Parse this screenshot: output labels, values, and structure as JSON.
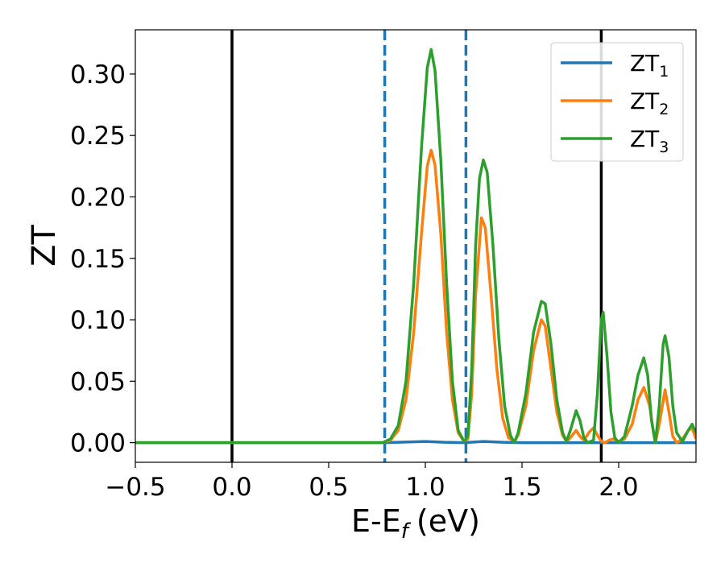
{
  "chart_data": {
    "type": "line",
    "title": "",
    "xlabel": "E-E",
    "xlabel_sub": "f",
    "xlabel_unit": "(eV)",
    "ylabel": "ZT",
    "xlim": [
      -0.5,
      2.4
    ],
    "ylim": [
      -0.016,
      0.336
    ],
    "xticks": [
      -0.5,
      0.0,
      0.5,
      1.0,
      1.5,
      2.0
    ],
    "xtick_labels": [
      "−0.5",
      "0.0",
      "0.5",
      "1.0",
      "1.5",
      "2.0"
    ],
    "yticks": [
      0.0,
      0.05,
      0.1,
      0.15,
      0.2,
      0.25,
      0.3
    ],
    "ytick_labels": [
      "0.00",
      "0.05",
      "0.10",
      "0.15",
      "0.20",
      "0.25",
      "0.30"
    ],
    "grid": false,
    "legend_position": "top-right",
    "vlines": [
      {
        "x": 0.0,
        "color": "#000000",
        "style": "solid"
      },
      {
        "x": 0.79,
        "color": "#1f77b4",
        "style": "dashed"
      },
      {
        "x": 1.21,
        "color": "#1f77b4",
        "style": "dashed"
      },
      {
        "x": 1.91,
        "color": "#000000",
        "style": "solid"
      }
    ],
    "series": [
      {
        "name": "ZT",
        "name_sub": "1",
        "color": "#1f77b4",
        "points": [
          [
            -0.5,
            0
          ],
          [
            0.78,
            0
          ],
          [
            0.9,
            0.0005
          ],
          [
            1.0,
            0.001
          ],
          [
            1.1,
            0.0003
          ],
          [
            1.2,
            0
          ],
          [
            1.3,
            0.001
          ],
          [
            1.4,
            0.0003
          ],
          [
            1.5,
            0
          ],
          [
            2.4,
            0
          ]
        ]
      },
      {
        "name": "ZT",
        "name_sub": "2",
        "color": "#ff7f0e",
        "points": [
          [
            -0.5,
            0
          ],
          [
            0.78,
            0
          ],
          [
            0.82,
            0.002
          ],
          [
            0.86,
            0.01
          ],
          [
            0.9,
            0.035
          ],
          [
            0.94,
            0.09
          ],
          [
            0.98,
            0.17
          ],
          [
            1.01,
            0.225
          ],
          [
            1.03,
            0.238
          ],
          [
            1.05,
            0.226
          ],
          [
            1.08,
            0.17
          ],
          [
            1.11,
            0.09
          ],
          [
            1.14,
            0.035
          ],
          [
            1.17,
            0.008
          ],
          [
            1.2,
            0.001
          ],
          [
            1.22,
            0.003
          ],
          [
            1.24,
            0.04
          ],
          [
            1.26,
            0.12
          ],
          [
            1.29,
            0.183
          ],
          [
            1.31,
            0.175
          ],
          [
            1.34,
            0.12
          ],
          [
            1.37,
            0.06
          ],
          [
            1.4,
            0.02
          ],
          [
            1.43,
            0.004
          ],
          [
            1.46,
            0.001
          ],
          [
            1.48,
            0.006
          ],
          [
            1.52,
            0.03
          ],
          [
            1.56,
            0.075
          ],
          [
            1.6,
            0.1
          ],
          [
            1.62,
            0.095
          ],
          [
            1.65,
            0.06
          ],
          [
            1.68,
            0.025
          ],
          [
            1.71,
            0.006
          ],
          [
            1.73,
            0.001
          ],
          [
            1.75,
            0.004
          ],
          [
            1.78,
            0.01
          ],
          [
            1.8,
            0.005
          ],
          [
            1.82,
            0.002
          ],
          [
            1.85,
            0.009
          ],
          [
            1.87,
            0.012
          ],
          [
            1.89,
            0.006
          ],
          [
            1.91,
            0.001
          ],
          [
            1.93,
            0.0
          ],
          [
            1.95,
            0.002
          ],
          [
            1.97,
            0.003
          ],
          [
            2.0,
            0.001
          ],
          [
            2.03,
            0.003
          ],
          [
            2.07,
            0.015
          ],
          [
            2.1,
            0.035
          ],
          [
            2.13,
            0.045
          ],
          [
            2.16,
            0.03
          ],
          [
            2.18,
            0.008
          ],
          [
            2.19,
            0.0
          ],
          [
            2.21,
            0.015
          ],
          [
            2.24,
            0.043
          ],
          [
            2.26,
            0.025
          ],
          [
            2.28,
            0.005
          ],
          [
            2.3,
            0.0
          ],
          [
            2.33,
            0.003
          ],
          [
            2.36,
            0.01
          ],
          [
            2.38,
            0.012
          ],
          [
            2.4,
            0.003
          ]
        ]
      },
      {
        "name": "ZT",
        "name_sub": "3",
        "color": "#2ca02c",
        "points": [
          [
            -0.5,
            0
          ],
          [
            0.78,
            0
          ],
          [
            0.82,
            0.003
          ],
          [
            0.86,
            0.014
          ],
          [
            0.9,
            0.05
          ],
          [
            0.94,
            0.13
          ],
          [
            0.98,
            0.24
          ],
          [
            1.01,
            0.305
          ],
          [
            1.03,
            0.32
          ],
          [
            1.05,
            0.303
          ],
          [
            1.08,
            0.23
          ],
          [
            1.11,
            0.13
          ],
          [
            1.14,
            0.05
          ],
          [
            1.17,
            0.01
          ],
          [
            1.2,
            0.001
          ],
          [
            1.22,
            0.005
          ],
          [
            1.24,
            0.06
          ],
          [
            1.26,
            0.16
          ],
          [
            1.28,
            0.215
          ],
          [
            1.3,
            0.23
          ],
          [
            1.32,
            0.22
          ],
          [
            1.35,
            0.16
          ],
          [
            1.38,
            0.085
          ],
          [
            1.41,
            0.03
          ],
          [
            1.44,
            0.006
          ],
          [
            1.46,
            0.0
          ],
          [
            1.48,
            0.008
          ],
          [
            1.52,
            0.04
          ],
          [
            1.56,
            0.09
          ],
          [
            1.6,
            0.115
          ],
          [
            1.62,
            0.113
          ],
          [
            1.65,
            0.08
          ],
          [
            1.68,
            0.035
          ],
          [
            1.71,
            0.008
          ],
          [
            1.73,
            0.001
          ],
          [
            1.75,
            0.01
          ],
          [
            1.78,
            0.026
          ],
          [
            1.8,
            0.018
          ],
          [
            1.82,
            0.004
          ],
          [
            1.84,
            0.0
          ],
          [
            1.87,
            0.002
          ],
          [
            1.89,
            0.04
          ],
          [
            1.91,
            0.1
          ],
          [
            1.92,
            0.106
          ],
          [
            1.94,
            0.07
          ],
          [
            1.96,
            0.025
          ],
          [
            1.98,
            0.004
          ],
          [
            2.0,
            0.0
          ],
          [
            2.03,
            0.005
          ],
          [
            2.07,
            0.03
          ],
          [
            2.1,
            0.055
          ],
          [
            2.13,
            0.069
          ],
          [
            2.15,
            0.055
          ],
          [
            2.17,
            0.018
          ],
          [
            2.19,
            0.0
          ],
          [
            2.21,
            0.03
          ],
          [
            2.23,
            0.08
          ],
          [
            2.24,
            0.087
          ],
          [
            2.26,
            0.07
          ],
          [
            2.28,
            0.03
          ],
          [
            2.3,
            0.008
          ],
          [
            2.33,
            0.001
          ],
          [
            2.36,
            0.01
          ],
          [
            2.38,
            0.015
          ],
          [
            2.4,
            0.008
          ]
        ]
      }
    ]
  }
}
